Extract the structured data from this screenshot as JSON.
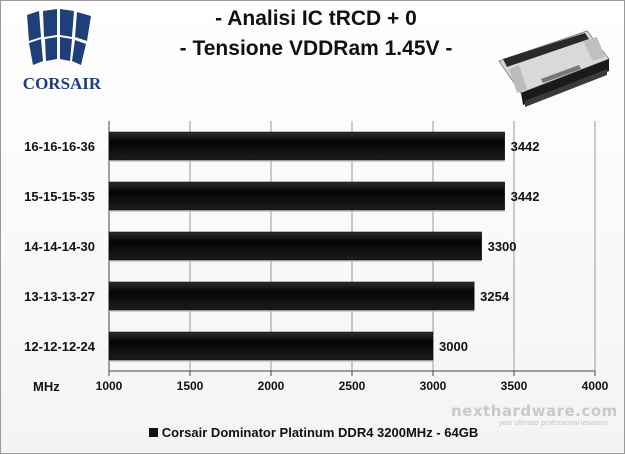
{
  "brand": {
    "logo_text": "CORSAIR"
  },
  "header": {
    "title_line1": "- Analisi IC  tRCD + 0",
    "title_line2": "- Tensione VDDRam 1.45V -"
  },
  "watermark": {
    "site": "nexthardware.com",
    "tagline": "your ultimate professional resource"
  },
  "colors": {
    "bar": "#0b0b0b",
    "grid": "#9a9a9a",
    "text": "#111111"
  },
  "chart_data": {
    "type": "bar",
    "orientation": "horizontal",
    "title": "- Analisi IC  tRCD + 0 - Tensione VDDRam 1.45V -",
    "xlabel": "MHz",
    "ylabel": "",
    "categories": [
      "16-16-16-36",
      "15-15-15-35",
      "14-14-14-30",
      "13-13-13-27",
      "12-12-12-24"
    ],
    "series": [
      {
        "name": "Corsair Dominator Platinum DDR4 3200MHz - 64GB",
        "values": [
          3442,
          3442,
          3300,
          3254,
          3000
        ]
      }
    ],
    "data_labels": [
      "3442",
      "3442",
      "3300",
      "3254",
      "3000"
    ],
    "xlim": [
      1000,
      4000
    ],
    "xticks": [
      "1000",
      "1500",
      "2000",
      "2500",
      "3000",
      "3500",
      "4000"
    ],
    "xtick_values": [
      1000,
      1500,
      2000,
      2500,
      3000,
      3500,
      4000
    ],
    "grid": true,
    "legend_position": "bottom"
  }
}
